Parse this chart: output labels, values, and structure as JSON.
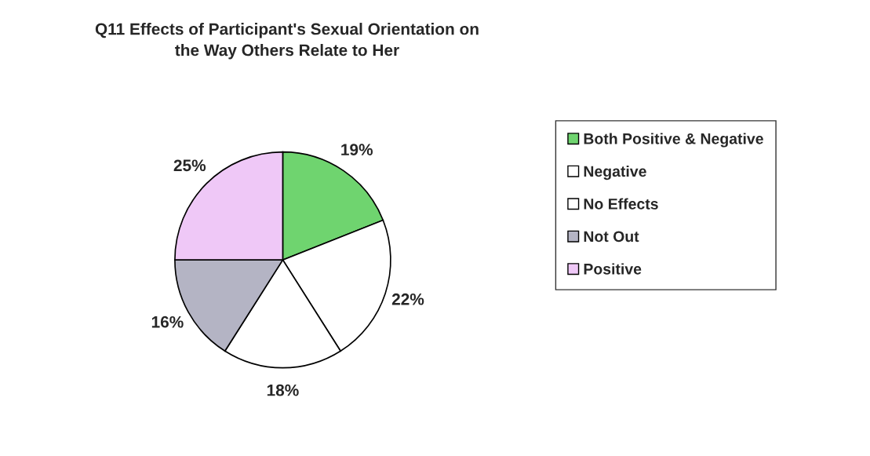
{
  "chart_data": {
    "type": "pie",
    "title": "Q11 Effects of Participant's Sexual Orientation on\nthe Way Others Relate to Her",
    "categories": [
      "Both Positive & Negative",
      "Negative",
      "No Effects",
      "Not Out",
      "Positive"
    ],
    "values": [
      19,
      22,
      18,
      16,
      25
    ],
    "colors": [
      "#6fd46f",
      "#ffffff",
      "#ffffff",
      "#b4b4c4",
      "#efc8f7"
    ],
    "value_labels": [
      "19%",
      "22%",
      "18%",
      "16%",
      "25%"
    ],
    "legend": "right"
  }
}
